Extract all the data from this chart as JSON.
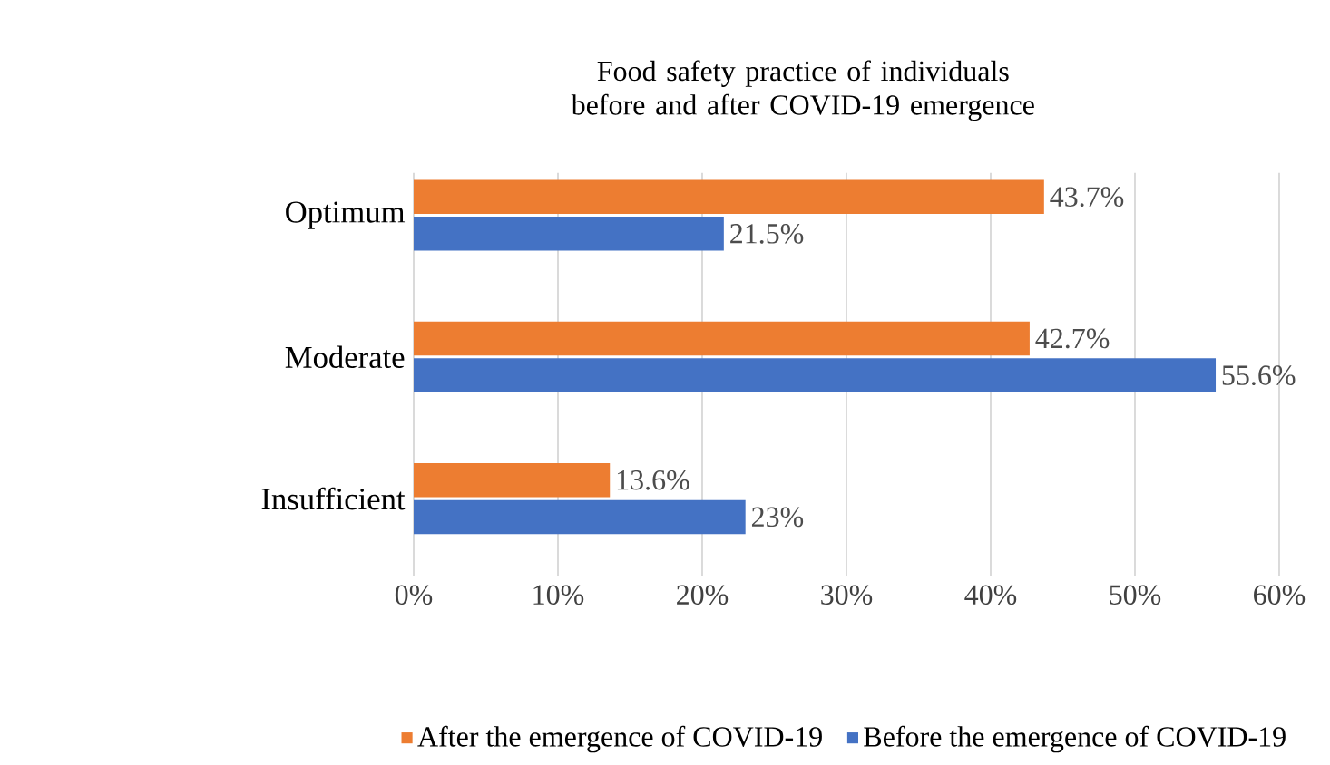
{
  "chart_data": {
    "type": "bar",
    "orientation": "horizontal",
    "title": "Food safety practice of individuals before and after COVID-19 emergence",
    "categories": [
      "Optimum",
      "Moderate",
      "Insufficient"
    ],
    "series": [
      {
        "name": "After the emergence of COVID-19",
        "color": "#ed7d31",
        "values": [
          43.7,
          42.7,
          13.6
        ],
        "value_labels": [
          "43.7%",
          "42.7%",
          "13.6%"
        ]
      },
      {
        "name": "Before the emergence of COVID-19",
        "color": "#4472c4",
        "values": [
          21.5,
          55.6,
          23
        ],
        "value_labels": [
          "21.5%",
          "55.6%",
          "23%"
        ]
      }
    ],
    "xlim": [
      0,
      60
    ],
    "xticks": [
      {
        "value": 0,
        "label": "0%"
      },
      {
        "value": 10,
        "label": "10%"
      },
      {
        "value": 20,
        "label": "20%"
      },
      {
        "value": 30,
        "label": "30%"
      },
      {
        "value": 40,
        "label": "40%"
      },
      {
        "value": 50,
        "label": "50%"
      },
      {
        "value": 60,
        "label": "60%"
      }
    ],
    "grid": "x",
    "legend": "bottom"
  }
}
